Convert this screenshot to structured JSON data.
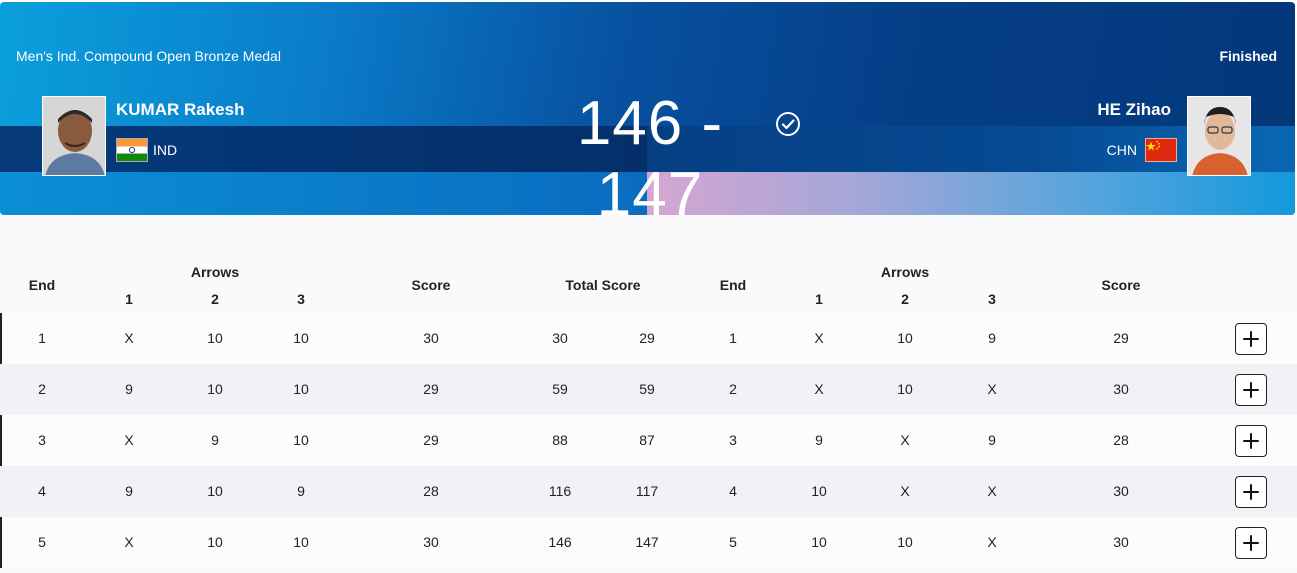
{
  "event": {
    "title": "Men's Ind. Compound Open Bronze Medal",
    "status": "Finished"
  },
  "left_athlete": {
    "name": "KUMAR Rakesh",
    "noc": "IND",
    "flag": "india-flag"
  },
  "right_athlete": {
    "name": "HE Zihao",
    "noc": "CHN",
    "flag": "china-flag",
    "winner": true
  },
  "score": "146 - 147",
  "colors": {
    "banner_dark": "#053e86",
    "banner_light": "#0aa0dc",
    "china_red": "#de2910",
    "india_saffron": "#ff9933",
    "india_green": "#138808"
  },
  "table": {
    "headers": {
      "end": "End",
      "arrows": "Arrows",
      "a1": "1",
      "a2": "2",
      "a3": "3",
      "score": "Score",
      "total": "Total Score"
    },
    "rows": [
      {
        "end": "1",
        "l1": "X",
        "l2": "10",
        "l3": "10",
        "ls": "30",
        "lt": "30",
        "rt": "29",
        "rend": "1",
        "r1": "X",
        "r2": "10",
        "r3": "9",
        "rs": "29"
      },
      {
        "end": "2",
        "l1": "9",
        "l2": "10",
        "l3": "10",
        "ls": "29",
        "lt": "59",
        "rt": "59",
        "rend": "2",
        "r1": "X",
        "r2": "10",
        "r3": "X",
        "rs": "30"
      },
      {
        "end": "3",
        "l1": "X",
        "l2": "9",
        "l3": "10",
        "ls": "29",
        "lt": "88",
        "rt": "87",
        "rend": "3",
        "r1": "9",
        "r2": "X",
        "r3": "9",
        "rs": "28"
      },
      {
        "end": "4",
        "l1": "9",
        "l2": "10",
        "l3": "9",
        "ls": "28",
        "lt": "116",
        "rt": "117",
        "rend": "4",
        "r1": "10",
        "r2": "X",
        "r3": "X",
        "rs": "30"
      },
      {
        "end": "5",
        "l1": "X",
        "l2": "10",
        "l3": "10",
        "ls": "30",
        "lt": "146",
        "rt": "147",
        "rend": "5",
        "r1": "10",
        "r2": "10",
        "r3": "X",
        "rs": "30"
      }
    ]
  }
}
